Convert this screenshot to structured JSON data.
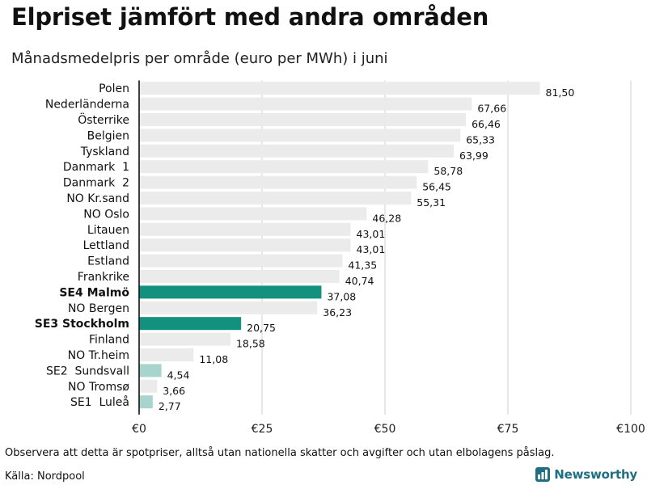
{
  "title": "Elpriset jämfört med andra områden",
  "subtitle": "Månadsmedelpris per område (euro per MWh) i juni",
  "footnote": "Observera att detta är spotpriser, alltså utan nationella skatter och avgifter och utan elbolagens påslag.",
  "source": "Källa: Nordpool",
  "brand": {
    "name": "Newsworthy",
    "icon": "newsworthy-logo-icon"
  },
  "colors": {
    "highlight": "#12917f",
    "highlight_light": "#a7d4cc",
    "default_bar": "#ebebeb",
    "gridline": "#d0d0d0",
    "axis": "#111111",
    "brand": "#1f6f83"
  },
  "chart_data": {
    "type": "bar",
    "orientation": "horizontal",
    "title": "Elpriset jämfört med andra områden",
    "subtitle": "Månadsmedelpris per område (euro per MWh) i juni",
    "xlim": [
      0,
      100
    ],
    "xticks": [
      0,
      25,
      50,
      75,
      100
    ],
    "xtick_labels": [
      "€0",
      "€25",
      "€50",
      "€75",
      "€100"
    ],
    "grid": "vertical",
    "legend": "none",
    "categories": [
      "Polen",
      "Nederländerna",
      "Österrike",
      "Belgien",
      "Tyskland",
      "Danmark  1",
      "Danmark  2",
      "NO Kr.sand",
      "NO Oslo",
      "Litauen",
      "Lettland",
      "Estland",
      "Frankrike",
      "SE4 Malmö",
      "NO Bergen",
      "SE3 Stockholm",
      "Finland",
      "NO Tr.heim",
      "SE2  Sundsvall",
      "NO Tromsø",
      "SE1  Luleå"
    ],
    "values": [
      81.5,
      67.66,
      66.46,
      65.33,
      63.99,
      58.78,
      56.45,
      55.31,
      46.28,
      43.01,
      43.01,
      41.35,
      40.74,
      37.08,
      36.23,
      20.75,
      18.58,
      11.08,
      4.54,
      3.66,
      2.77
    ],
    "value_labels": [
      "81,50",
      "67,66",
      "66,46",
      "65,33",
      "63,99",
      "58,78",
      "56,45",
      "55,31",
      "46,28",
      "43,01",
      "43,01",
      "41,35",
      "40,74",
      "37,08",
      "36,23",
      "20,75",
      "18,58",
      "11,08",
      "4,54",
      "3,66",
      "2,77"
    ],
    "highlight": [
      "none",
      "none",
      "none",
      "none",
      "none",
      "none",
      "none",
      "none",
      "none",
      "none",
      "none",
      "none",
      "none",
      "strong",
      "none",
      "strong",
      "none",
      "none",
      "light",
      "none",
      "light"
    ]
  }
}
